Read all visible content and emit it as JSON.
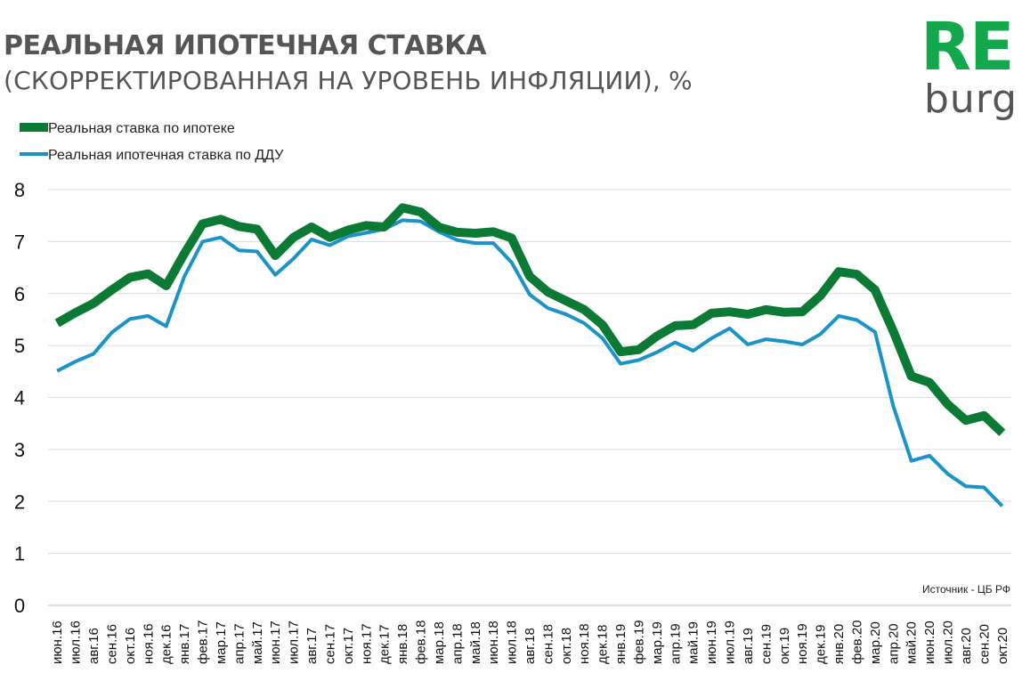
{
  "title_line1": "РЕАЛЬНАЯ ИПОТЕЧНАЯ СТАВКА",
  "title_line2": "(СКОРРЕКТИРОВАННАЯ НА УРОВЕНЬ  ИНФЛЯЦИИ), %",
  "logo": {
    "top": "RE",
    "bottom": "burg"
  },
  "source": "Источник  - ЦБ РФ",
  "colors": {
    "mortgage": "#0a7a34",
    "ddu": "#1b93c9",
    "logo_green": "#13a84c",
    "text_gray": "#555555",
    "grid": "#dcdcdc"
  },
  "chart_data": {
    "type": "line",
    "title": "РЕАЛЬНАЯ ИПОТЕЧНАЯ СТАВКА (СКОРРЕКТИРОВАННАЯ НА УРОВЕНЬ  ИНФЛЯЦИИ), %",
    "xlabel": "",
    "ylabel": "",
    "ylim": [
      0,
      8
    ],
    "yticks": [
      0,
      1,
      2,
      3,
      4,
      5,
      6,
      7,
      8
    ],
    "grid": true,
    "legend": "top-left",
    "categories": [
      "июн.16",
      "июл.16",
      "авг.16",
      "сен.16",
      "окт.16",
      "ноя.16",
      "дек.16",
      "янв.17",
      "фев.17",
      "мар.17",
      "апр.17",
      "май.17",
      "июн.17",
      "июл.17",
      "авг.17",
      "сен.17",
      "окт.17",
      "ноя.17",
      "дек.17",
      "янв.18",
      "фев.18",
      "мар.18",
      "апр.18",
      "май.18",
      "июн.18",
      "июл.18",
      "авг.18",
      "сен.18",
      "окт.18",
      "ноя.18",
      "дек.18",
      "янв.19",
      "фев.19",
      "мар.19",
      "апр.19",
      "май.19",
      "июн.19",
      "июл.19",
      "авг.19",
      "сен.19",
      "окт.19",
      "ноя.19",
      "дек.19",
      "янв.20",
      "фев.20",
      "мар.20",
      "апр.20",
      "май.20",
      "июн.20",
      "июл.20",
      "авг.20",
      "сен.20",
      "окт.20"
    ],
    "series": [
      {
        "name": "Реальная ставка по ипотеке",
        "color": "#0a7a34",
        "values": [
          5.43,
          5.63,
          5.81,
          6.07,
          6.31,
          6.38,
          6.15,
          6.77,
          7.34,
          7.43,
          7.29,
          7.24,
          6.73,
          7.08,
          7.28,
          7.08,
          7.22,
          7.31,
          7.28,
          7.65,
          7.57,
          7.28,
          7.18,
          7.16,
          7.19,
          7.07,
          6.33,
          6.03,
          5.86,
          5.69,
          5.4,
          4.88,
          4.92,
          5.18,
          5.38,
          5.4,
          5.62,
          5.65,
          5.6,
          5.69,
          5.64,
          5.65,
          5.96,
          6.42,
          6.37,
          6.07,
          5.28,
          4.41,
          4.29,
          3.87,
          3.56,
          3.65,
          3.32
        ]
      },
      {
        "name": "Реальная ипотечная ставка по ДДУ",
        "color": "#1b93c9",
        "values": [
          4.51,
          4.69,
          4.84,
          5.25,
          5.51,
          5.57,
          5.37,
          6.33,
          7.0,
          7.08,
          6.83,
          6.81,
          6.36,
          6.67,
          7.04,
          6.93,
          7.1,
          7.17,
          7.24,
          7.41,
          7.39,
          7.19,
          7.03,
          6.97,
          6.97,
          6.6,
          5.98,
          5.72,
          5.6,
          5.43,
          5.14,
          4.65,
          4.72,
          4.87,
          5.06,
          4.9,
          5.14,
          5.33,
          5.02,
          5.12,
          5.08,
          5.02,
          5.22,
          5.57,
          5.49,
          5.26,
          3.84,
          2.78,
          2.88,
          2.53,
          2.29,
          2.27,
          1.91
        ]
      }
    ]
  }
}
